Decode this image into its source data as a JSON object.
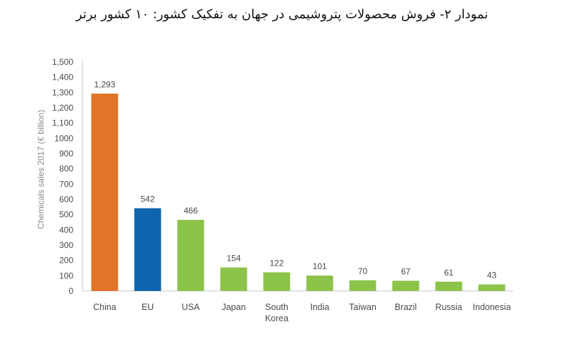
{
  "title": "نمودار ۲- فروش محصولات پتروشیمی در جهان به تفکیک کشور: ۱۰ کشور برتر",
  "chart_data": {
    "type": "bar",
    "ylabel": "Chemicals sales 2017 (€ billion)",
    "xlabel": "",
    "ylim": [
      0,
      1500
    ],
    "ytick_step": 100,
    "ytick_labels": [
      "0",
      "100",
      "200",
      "300",
      "400",
      "500",
      "600",
      "700",
      "800",
      "900",
      "1000",
      "1,100",
      "1,200",
      "1,300",
      "1,400",
      "1,500"
    ],
    "grid": false,
    "categories": [
      "China",
      "EU",
      "USA",
      "Japan",
      "South Korea",
      "India",
      "Taiwan",
      "Brazil",
      "Russia",
      "Indonesia"
    ],
    "category_lines": [
      [
        "China"
      ],
      [
        "EU"
      ],
      [
        "USA"
      ],
      [
        "Japan"
      ],
      [
        "South",
        "Korea"
      ],
      [
        "India"
      ],
      [
        "Taiwan"
      ],
      [
        "Brazil"
      ],
      [
        "Russia"
      ],
      [
        "Indonesia"
      ]
    ],
    "values": [
      1293,
      542,
      466,
      154,
      122,
      101,
      70,
      67,
      61,
      43
    ],
    "value_labels": [
      "1,293",
      "542",
      "466",
      "154",
      "122",
      "101",
      "70",
      "67",
      "61",
      "43"
    ],
    "colors": [
      "#e07428",
      "#0e65ad",
      "#8cc34a",
      "#8cc34a",
      "#8cc34a",
      "#8cc34a",
      "#8cc34a",
      "#8cc34a",
      "#8cc34a",
      "#8cc34a"
    ]
  }
}
